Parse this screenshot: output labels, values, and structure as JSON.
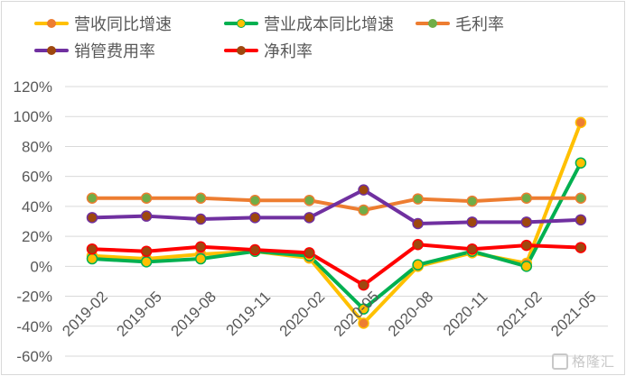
{
  "chart_data": {
    "type": "line",
    "title": "",
    "xlabel": "",
    "ylabel": "",
    "ylim": [
      -60,
      120
    ],
    "yticks": [
      "120%",
      "100%",
      "80%",
      "60%",
      "40%",
      "20%",
      "0%",
      "-20%",
      "-40%",
      "-60%"
    ],
    "ytick_values": [
      120,
      100,
      80,
      60,
      40,
      20,
      0,
      -20,
      -40,
      -60
    ],
    "grid": true,
    "legend_position": "top",
    "categories": [
      "2019-02",
      "2019-05",
      "2019-08",
      "2019-11",
      "2020-02",
      "2020-05",
      "2020-08",
      "2020-11",
      "2021-02",
      "2021-05"
    ],
    "series": [
      {
        "name": "营收同比增速",
        "line_color": "#FFC000",
        "marker_color": "#ED7D31",
        "values": [
          7,
          5,
          8,
          10,
          5.5,
          -38,
          0,
          9,
          2,
          96
        ]
      },
      {
        "name": "营业成本同比增速",
        "line_color": "#00B050",
        "marker_color": "#FFC000",
        "values": [
          5,
          3,
          5,
          10,
          7,
          -28.5,
          1,
          10,
          0,
          69
        ]
      },
      {
        "name": "毛利率",
        "line_color": "#ED7D31",
        "marker_color": "#70AD47",
        "values": [
          45.5,
          45.5,
          45.5,
          44,
          44,
          37.5,
          45,
          43.5,
          45.5,
          45.5
        ]
      },
      {
        "name": "销管费用率",
        "line_color": "#7030A0",
        "marker_color": "#9E480E",
        "values": [
          32.5,
          33.5,
          31.5,
          32.5,
          32.5,
          51,
          28.5,
          29.5,
          29.5,
          31
        ]
      },
      {
        "name": "净利率",
        "line_color": "#FF0000",
        "marker_color": "#9E480E",
        "values": [
          11.5,
          10,
          13,
          11,
          9,
          -12.5,
          14.5,
          11.5,
          14,
          12.5
        ]
      }
    ]
  },
  "legend": [
    {
      "label": "营收同比增速"
    },
    {
      "label": "营业成本同比增速"
    },
    {
      "label": "毛利率"
    },
    {
      "label": "销管费用率"
    },
    {
      "label": "净利率"
    }
  ],
  "watermark": {
    "text": "格隆汇"
  }
}
